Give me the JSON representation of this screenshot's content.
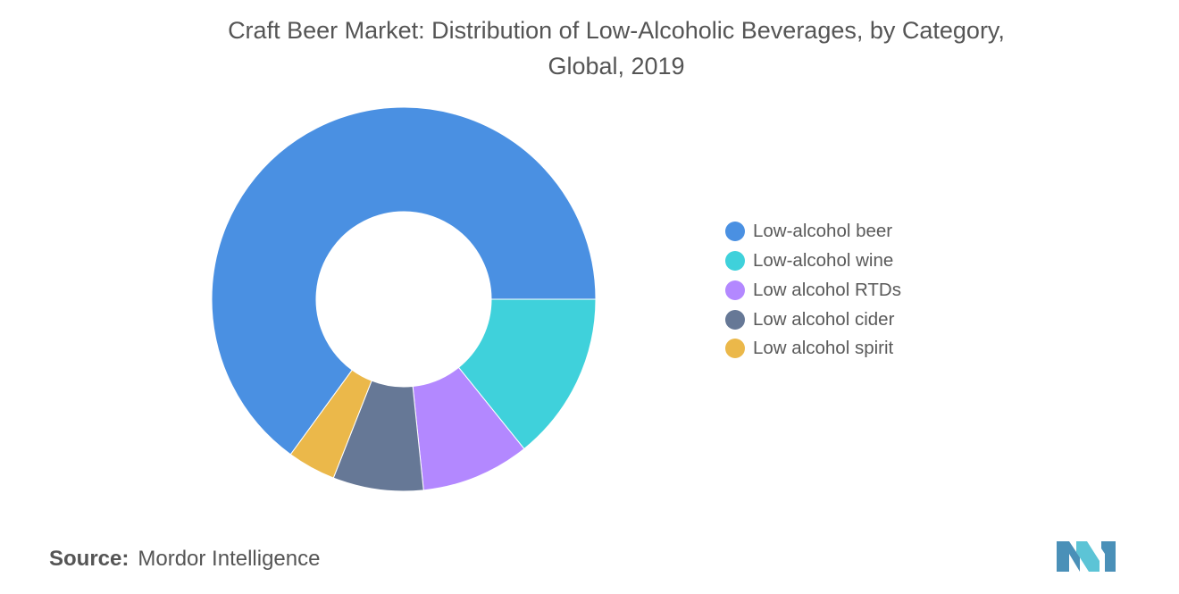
{
  "chart_data": {
    "type": "pie",
    "variant": "donut",
    "title_lines": [
      "Craft Beer Market: Distribution of Low-Alcoholic Beverages, by Category,",
      "Global, 2019"
    ],
    "slices": [
      {
        "label": "Low-alcohol beer",
        "value": 64.0,
        "color": "#4a90e2"
      },
      {
        "label": "Low-alcohol wine",
        "value": 14.0,
        "color": "#3fd1db"
      },
      {
        "label": "Low alcohol RTDs",
        "value": 9.0,
        "color": "#b388ff"
      },
      {
        "label": "Low alcohol cider",
        "value": 7.5,
        "color": "#667896"
      },
      {
        "label": "Low alcohol spirit",
        "value": 4.0,
        "color": "#ebb84a"
      }
    ],
    "legend_position": "right",
    "data_labels": false
  },
  "source": {
    "label": "Source:",
    "text": "Mordor Intelligence"
  },
  "logo": {
    "icon": "mordor-intelligence-logo-icon",
    "colors": [
      "#4a90b8",
      "#5cc4d6"
    ]
  }
}
